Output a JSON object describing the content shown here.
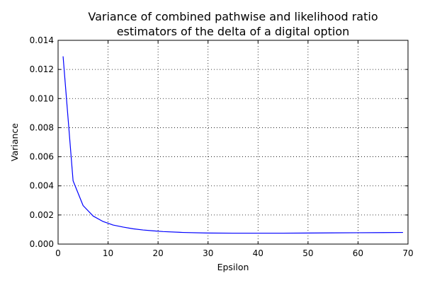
{
  "chart_data": {
    "type": "line",
    "title_lines": [
      "Variance of combined pathwise and likelihood ratio",
      "estimators of the delta of a digital option"
    ],
    "xlabel": "Epsilon",
    "ylabel": "Variance",
    "xlim": [
      0,
      70
    ],
    "ylim": [
      0,
      0.014
    ],
    "xticks": [
      0,
      10,
      20,
      30,
      40,
      50,
      60,
      70
    ],
    "xtick_labels": [
      "0",
      "10",
      "20",
      "30",
      "40",
      "50",
      "60",
      "70"
    ],
    "yticks": [
      0,
      0.002,
      0.004,
      0.006,
      0.008,
      0.01,
      0.012,
      0.014
    ],
    "ytick_labels": [
      "0.000",
      "0.002",
      "0.004",
      "0.006",
      "0.008",
      "0.010",
      "0.012",
      "0.014"
    ],
    "grid": true,
    "grid_style": "dotted",
    "line_color": "#0000ff",
    "series": [
      {
        "x": [
          1,
          3,
          5,
          7,
          9,
          11,
          13,
          15,
          17,
          19,
          21,
          25,
          30,
          35,
          40,
          45,
          50,
          55,
          60,
          65,
          69
        ],
        "values": [
          0.0129,
          0.00435,
          0.00265,
          0.00193,
          0.00155,
          0.00131,
          0.00117,
          0.00105,
          0.00097,
          0.00091,
          0.00086,
          0.0008,
          0.00076,
          0.00075,
          0.00075,
          0.00075,
          0.00076,
          0.00077,
          0.00078,
          0.00079,
          0.0008
        ]
      }
    ]
  }
}
